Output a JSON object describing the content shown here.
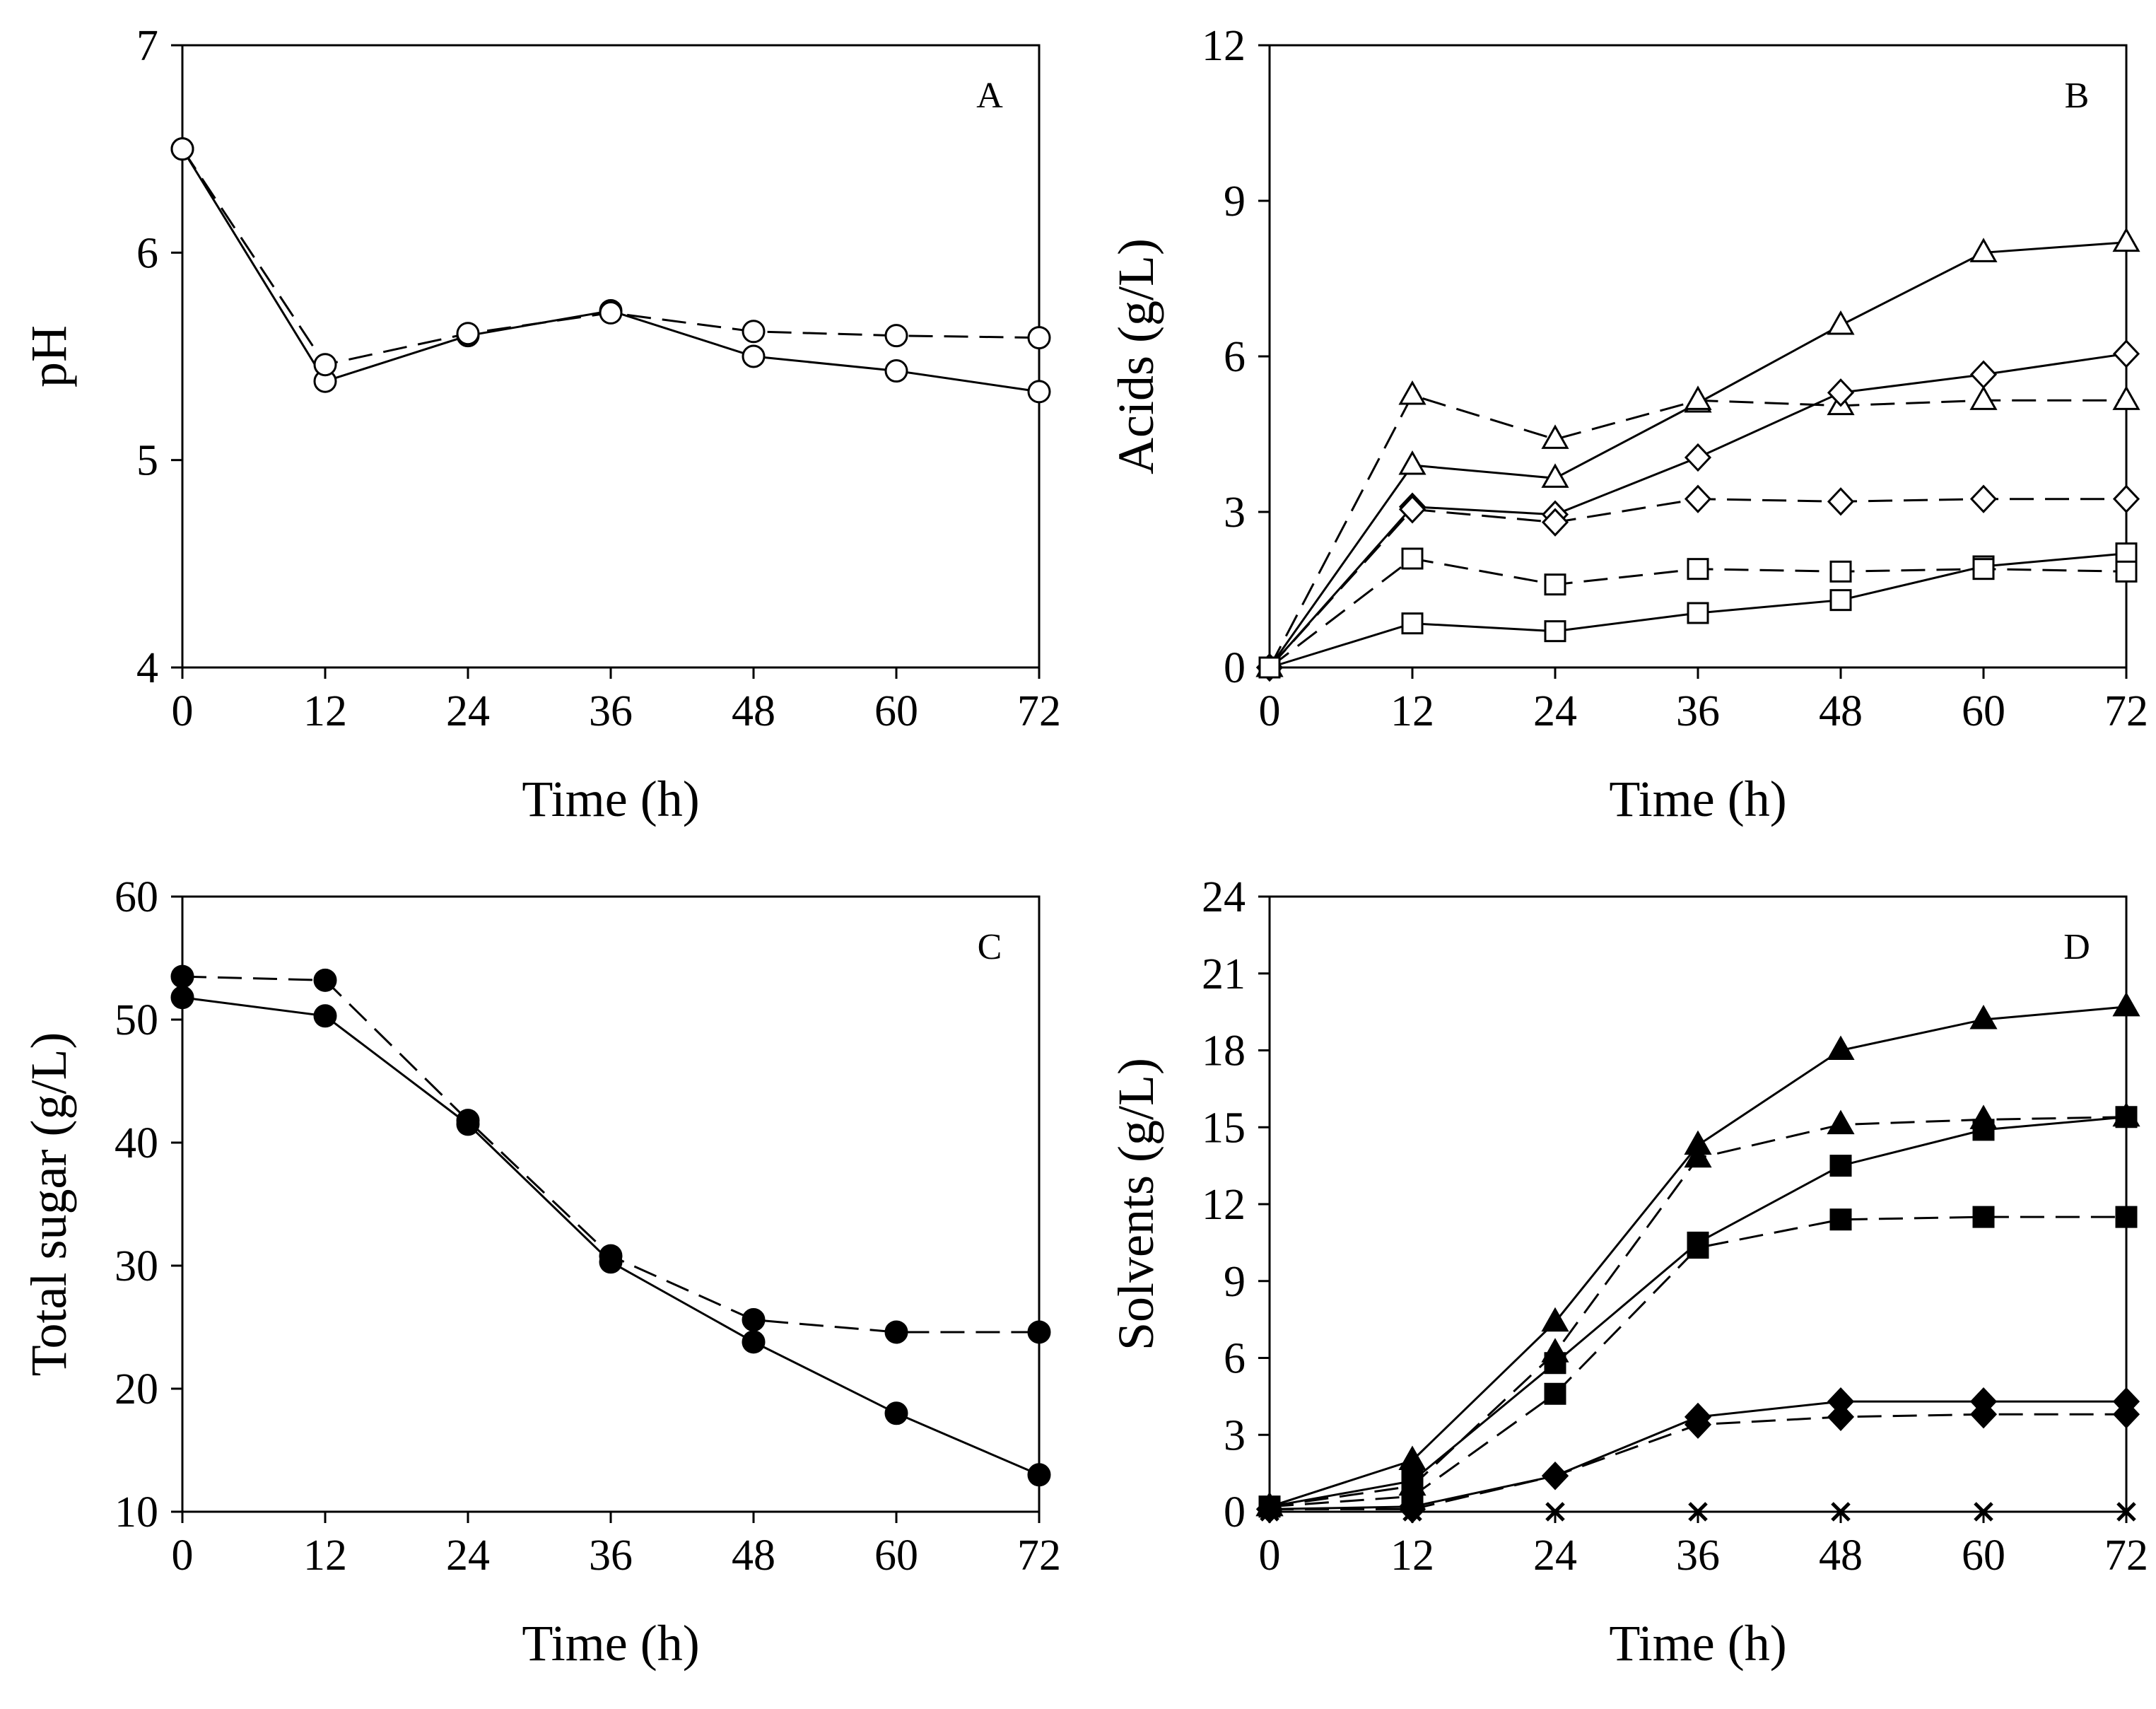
{
  "chart_data": [
    {
      "panel": "A",
      "type": "line",
      "xlabel": "Time (h)",
      "ylabel": "pH",
      "xlim": [
        0,
        72
      ],
      "ylim": [
        4,
        7
      ],
      "xticks": [
        "0",
        "12",
        "24",
        "36",
        "48",
        "60",
        "72"
      ],
      "yticks": [
        "4",
        "5",
        "6",
        "7"
      ],
      "x": [
        0,
        12,
        24,
        36,
        48,
        60,
        72
      ],
      "series": [
        {
          "name": "pH (solid)",
          "line": "solid",
          "marker": "circle-open",
          "values": [
            6.5,
            5.38,
            5.6,
            5.72,
            5.5,
            5.43,
            5.33
          ]
        },
        {
          "name": "pH (dashed)",
          "line": "dashed",
          "marker": "circle-open",
          "values": [
            6.5,
            5.46,
            5.61,
            5.71,
            5.62,
            5.6,
            5.59
          ]
        }
      ]
    },
    {
      "panel": "B",
      "type": "line",
      "xlabel": "Time (h)",
      "ylabel": "Acids (g/L)",
      "xlim": [
        0,
        72
      ],
      "ylim": [
        0,
        12
      ],
      "xticks": [
        "0",
        "12",
        "24",
        "36",
        "48",
        "60",
        "72"
      ],
      "yticks": [
        "0",
        "3",
        "6",
        "9",
        "12"
      ],
      "x": [
        0,
        12,
        24,
        36,
        48,
        60,
        72
      ],
      "series": [
        {
          "name": "Triangle solid",
          "line": "solid",
          "marker": "triangle-open",
          "values": [
            0,
            3.9,
            3.65,
            5.1,
            6.6,
            8.0,
            8.2
          ]
        },
        {
          "name": "Triangle dashed",
          "line": "dashed",
          "marker": "triangle-open",
          "values": [
            0,
            5.25,
            4.4,
            5.15,
            5.05,
            5.15,
            5.15
          ]
        },
        {
          "name": "Diamond solid",
          "line": "solid",
          "marker": "diamond-open",
          "values": [
            0,
            3.1,
            2.95,
            4.05,
            5.3,
            5.65,
            6.05
          ]
        },
        {
          "name": "Diamond dashed",
          "line": "dashed",
          "marker": "diamond-open",
          "values": [
            0,
            3.05,
            2.8,
            3.25,
            3.2,
            3.25,
            3.25
          ]
        },
        {
          "name": "Square solid",
          "line": "solid",
          "marker": "square-open",
          "values": [
            0,
            0.85,
            0.7,
            1.05,
            1.3,
            1.95,
            2.2
          ]
        },
        {
          "name": "Square dashed",
          "line": "dashed",
          "marker": "square-open",
          "values": [
            0,
            2.1,
            1.6,
            1.9,
            1.85,
            1.9,
            1.85
          ]
        }
      ]
    },
    {
      "panel": "C",
      "type": "line",
      "xlabel": "Time (h)",
      "ylabel": "Total sugar (g/L)",
      "xlim": [
        0,
        72
      ],
      "ylim": [
        10,
        60
      ],
      "xticks": [
        "0",
        "12",
        "24",
        "36",
        "48",
        "60",
        "72"
      ],
      "yticks": [
        "10",
        "20",
        "30",
        "40",
        "50",
        "60"
      ],
      "x": [
        0,
        12,
        24,
        36,
        48,
        60,
        72
      ],
      "series": [
        {
          "name": "Sugar solid",
          "line": "solid",
          "marker": "circle-filled",
          "values": [
            51.8,
            50.3,
            41.5,
            30.3,
            23.8,
            18.0,
            13.0
          ]
        },
        {
          "name": "Sugar dashed",
          "line": "dashed",
          "marker": "circle-filled",
          "values": [
            53.5,
            53.2,
            41.8,
            30.8,
            25.6,
            24.6,
            24.6
          ]
        }
      ]
    },
    {
      "panel": "D",
      "type": "line",
      "xlabel": "Time (h)",
      "ylabel": "Solvents (g/L)",
      "xlim": [
        0,
        72
      ],
      "ylim": [
        0,
        24
      ],
      "xticks": [
        "0",
        "12",
        "24",
        "36",
        "48",
        "60",
        "72"
      ],
      "yticks": [
        "0",
        "3",
        "6",
        "9",
        "12",
        "15",
        "18",
        "21",
        "24"
      ],
      "x": [
        0,
        12,
        24,
        36,
        48,
        60,
        72
      ],
      "series": [
        {
          "name": "Triangle solid",
          "line": "solid",
          "marker": "triangle-filled",
          "values": [
            0.2,
            2.0,
            7.4,
            14.3,
            18.0,
            19.2,
            19.7
          ]
        },
        {
          "name": "Triangle dashed",
          "line": "dashed",
          "marker": "triangle-filled",
          "values": [
            0.2,
            1.0,
            6.2,
            13.8,
            15.1,
            15.3,
            15.4
          ]
        },
        {
          "name": "Square solid",
          "line": "solid",
          "marker": "square-filled",
          "values": [
            0.2,
            1.2,
            5.8,
            10.5,
            13.5,
            14.9,
            15.4
          ]
        },
        {
          "name": "Square dashed",
          "line": "dashed",
          "marker": "square-filled",
          "values": [
            0.2,
            0.6,
            4.6,
            10.3,
            11.4,
            11.5,
            11.5
          ]
        },
        {
          "name": "Diamond solid",
          "line": "solid",
          "marker": "diamond-filled",
          "values": [
            0.1,
            0.2,
            1.4,
            3.7,
            4.3,
            4.3,
            4.3
          ]
        },
        {
          "name": "Diamond dashed",
          "line": "dashed",
          "marker": "diamond-filled",
          "values": [
            0.1,
            0.1,
            1.4,
            3.4,
            3.7,
            3.8,
            3.8
          ]
        },
        {
          "name": "Cross",
          "line": "solid",
          "marker": "x",
          "values": [
            0,
            0,
            0,
            0,
            0,
            0,
            0
          ]
        }
      ]
    }
  ]
}
